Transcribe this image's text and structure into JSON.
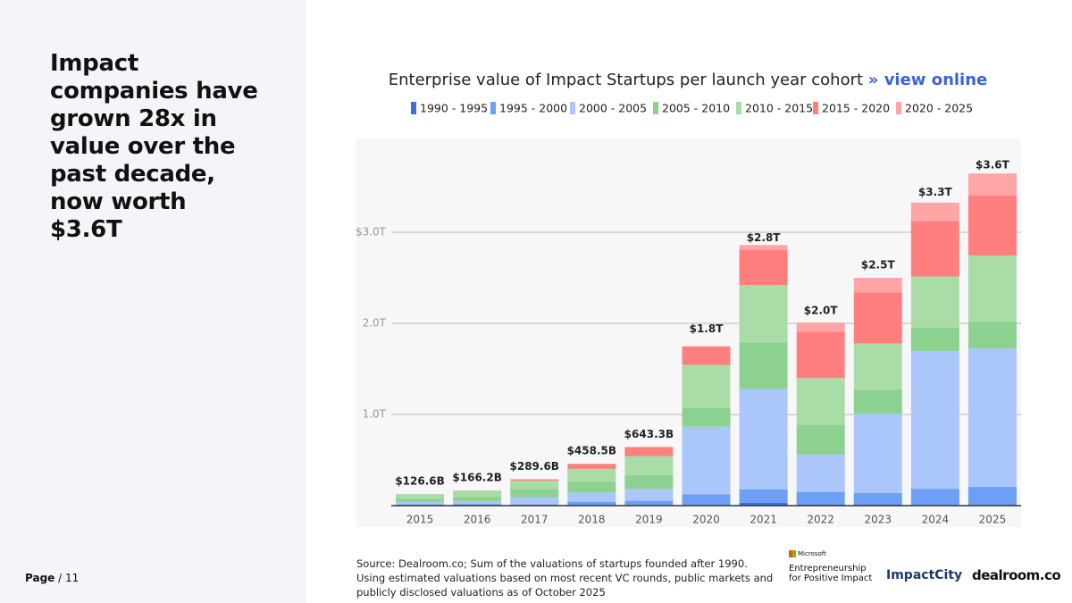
{
  "slide": {
    "headline": "Impact companies have grown 28x in value over the past decade, now worth $3.6T",
    "page": "Page",
    "page_count": "/ 11",
    "source": "Source:  Dealroom.co; Sum of the valuations of startups founded after 1990. Using estimated valuations based on most recent VC rounds, public markets and publicly disclosed valuations as of October 2025",
    "logos": [
      "Microsoft",
      "Entrepreneurship",
      "for Positive Impact",
      "ImpactCity",
      "dealroom.co"
    ]
  },
  "chart_data": {
    "type": "stacked_bar",
    "title": "Enterprise value of Impact Startups per launch year cohort",
    "link": "» view online",
    "categories": [
      "2015",
      "2016",
      "2017",
      "2018",
      "2019",
      "2020",
      "2021",
      "2022",
      "2023",
      "2024",
      "2025"
    ],
    "series": [
      {
        "name": "1990 - 1995",
        "color": "#3b6fe0",
        "values": [
          0.003,
          0.003,
          0.003,
          0.003,
          0.003,
          0.005,
          0.03,
          0.01,
          0.01,
          0.005,
          0.005
        ]
      },
      {
        "name": "1995 - 2000",
        "color": "#6c9ff5",
        "values": [
          0.01,
          0.012,
          0.01,
          0.04,
          0.05,
          0.12,
          0.15,
          0.14,
          0.13,
          0.18,
          0.2
        ]
      },
      {
        "name": "2000 - 2005",
        "color": "#aac6fb",
        "values": [
          0.03,
          0.035,
          0.08,
          0.1,
          0.13,
          0.74,
          1.1,
          0.41,
          0.87,
          1.51,
          1.52
        ]
      },
      {
        "name": "2005 - 2010",
        "color": "#8cd18f",
        "values": [
          0.03,
          0.045,
          0.09,
          0.12,
          0.15,
          0.21,
          0.51,
          0.33,
          0.26,
          0.26,
          0.29
        ]
      },
      {
        "name": "2010 - 2015",
        "color": "#a9dca6",
        "values": [
          0.0536,
          0.07,
          0.09,
          0.14,
          0.21,
          0.47,
          0.63,
          0.51,
          0.51,
          0.56,
          0.73
        ]
      },
      {
        "name": "2015 - 2020",
        "color": "#ff7f7f",
        "values": [
          0,
          0.001,
          0.016,
          0.055,
          0.1,
          0.2,
          0.39,
          0.51,
          0.56,
          0.61,
          0.66
        ]
      },
      {
        "name": "2020 - 2025",
        "color": "#ffa5a5",
        "values": [
          0,
          0,
          0,
          0,
          0,
          0.005,
          0.05,
          0.1,
          0.16,
          0.2,
          0.24
        ]
      }
    ],
    "totals": {
      "values": [
        0.1266,
        0.1662,
        0.2896,
        0.4585,
        0.6433,
        1.8,
        2.8,
        2.0,
        2.5,
        3.3,
        3.6
      ],
      "value_labels": [
        "$126.6B",
        "$166.2B",
        "$289.6B",
        "$458.5B",
        "$643.3B",
        "$1.8T",
        "$2.8T",
        "$2.0T",
        "$2.5T",
        "$3.3T",
        "$3.6T"
      ]
    },
    "ylim": [
      0,
      4
    ],
    "yticks": [
      {
        "value": 1,
        "label": "1.0T"
      },
      {
        "value": 2,
        "label": "2.0T"
      },
      {
        "value": 3,
        "label": "$3.0T"
      }
    ],
    "grid": true
  }
}
